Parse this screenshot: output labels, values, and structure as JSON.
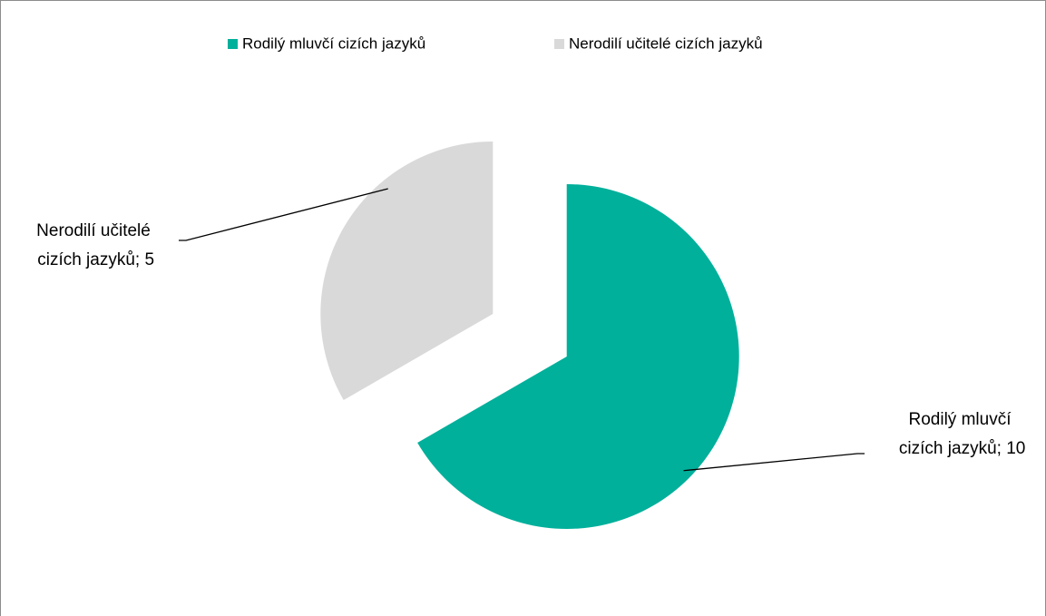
{
  "chart_data": {
    "type": "pie",
    "categories": [
      "Rodilý mluvčí cizích jazyků",
      "Nerodilí učitelé cizích jazyků"
    ],
    "values": [
      10,
      5
    ],
    "value_labels": [
      "Rodilý mluvčí cizích jazyků; 10",
      "Nerodilí učitelé cizích jazyků; 5"
    ],
    "colors": [
      "#00b09b",
      "#d9d9d9"
    ],
    "legend": "top"
  }
}
